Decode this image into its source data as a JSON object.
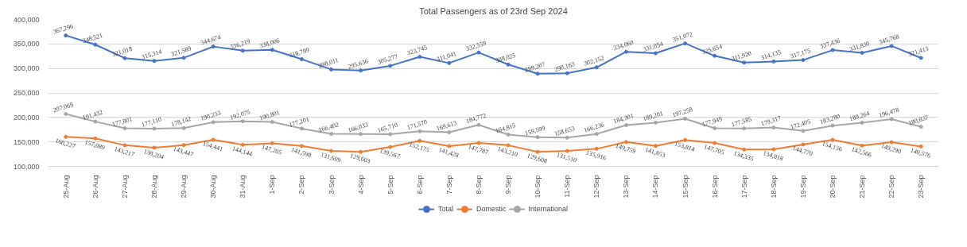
{
  "chart_data": {
    "type": "line",
    "title": "Total Passengers as of 23rd Sep 2024",
    "categories": [
      "25-Aug",
      "26-Aug",
      "27-Aug",
      "28-Aug",
      "29-Aug",
      "30-Aug",
      "31-Aug",
      "1-Sep",
      "2-Sep",
      "3-Sep",
      "4-Sep",
      "5-Sep",
      "6-Sep",
      "7-Sep",
      "8-Sep",
      "9-Sep",
      "10-Sep",
      "11-Sep",
      "12-Sep",
      "13-Sep",
      "14-Sep",
      "15-Sep",
      "16-Sep",
      "17-Sep",
      "18-Sep",
      "19-Sep",
      "20-Sep",
      "21-Sep",
      "22-Sep",
      "23-Sep"
    ],
    "series": [
      {
        "name": "Total",
        "color": "#4472c4",
        "values": [
          367296,
          348521,
          321018,
          315314,
          321589,
          344674,
          336219,
          338006,
          318799,
          298011,
          295636,
          305277,
          323745,
          311041,
          332559,
          308025,
          289207,
          290163,
          302152,
          334060,
          331054,
          351072,
          325654,
          311920,
          314135,
          317175,
          337436,
          331830,
          345768,
          321413
        ],
        "value_labels": [
          "367,296",
          "348,521",
          "321,018",
          "315,314",
          "321,589",
          "344,674",
          "336,219",
          "338,006",
          "318,799",
          "298,011",
          "295,636",
          "305,277",
          "323,745",
          "311,041",
          "332,559",
          "308,025",
          "289,207",
          "290,163",
          "302,152",
          "334,060",
          "331,054",
          "351,072",
          "325,654",
          "311,920",
          "314,135",
          "317,175",
          "337,436",
          "331,830",
          "345,768",
          "321,413"
        ]
      },
      {
        "name": "Domestic",
        "color": "#ed7d31",
        "values": [
          160227,
          157089,
          143217,
          138204,
          143447,
          154441,
          144144,
          147205,
          141598,
          131609,
          129603,
          139567,
          152175,
          141428,
          147787,
          143210,
          129608,
          131510,
          135916,
          149759,
          141853,
          153814,
          147705,
          134335,
          134818,
          144770,
          154156,
          142566,
          149290,
          140576
        ],
        "value_labels": [
          "160,227",
          "157,089",
          "143,217",
          "138,204",
          "143,447",
          "154,441",
          "144,144",
          "147,205",
          "141,598",
          "131,609",
          "129,603",
          "139,567",
          "152,175",
          "141,428",
          "147,787",
          "143,210",
          "129,608",
          "131,510",
          "135,916",
          "149,759",
          "141,853",
          "153,814",
          "147,705",
          "134,335",
          "134,818",
          "144,770",
          "154,156",
          "142,566",
          "149,290",
          "140,576"
        ]
      },
      {
        "name": "International",
        "color": "#a5a5a5",
        "values": [
          207069,
          191432,
          177801,
          177110,
          178142,
          190233,
          192075,
          190801,
          177201,
          166402,
          166033,
          165710,
          171570,
          169613,
          184772,
          164815,
          159599,
          158653,
          166236,
          184301,
          189201,
          197258,
          177949,
          177585,
          179317,
          172405,
          183280,
          189264,
          196478,
          180837
        ],
        "value_labels": [
          "207,069",
          "191,432",
          "177,801",
          "177,110",
          "178,142",
          "190,233",
          "192,075",
          "190,801",
          "177,201",
          "166,402",
          "166,033",
          "165,710",
          "171,570",
          "169,613",
          "184,772",
          "164,815",
          "159,599",
          "158,653",
          "166,236",
          "184,301",
          "189,201",
          "197,258",
          "177,949",
          "177,585",
          "179,317",
          "172,405",
          "183,280",
          "189,264",
          "196,478",
          "180,837"
        ]
      }
    ],
    "ylim": [
      100000,
      400000
    ],
    "yticks": [
      {
        "value": 100000,
        "label": "100,000"
      },
      {
        "value": 150000,
        "label": "150,000"
      },
      {
        "value": 200000,
        "label": "200,000"
      },
      {
        "value": 250000,
        "label": "250,000"
      },
      {
        "value": 300000,
        "label": "300,000"
      },
      {
        "value": 350000,
        "label": "350,000"
      },
      {
        "value": 400000,
        "label": "400,000"
      }
    ],
    "grid": "y",
    "legend": "bottom",
    "marker": "circle",
    "line_style": "solid"
  }
}
